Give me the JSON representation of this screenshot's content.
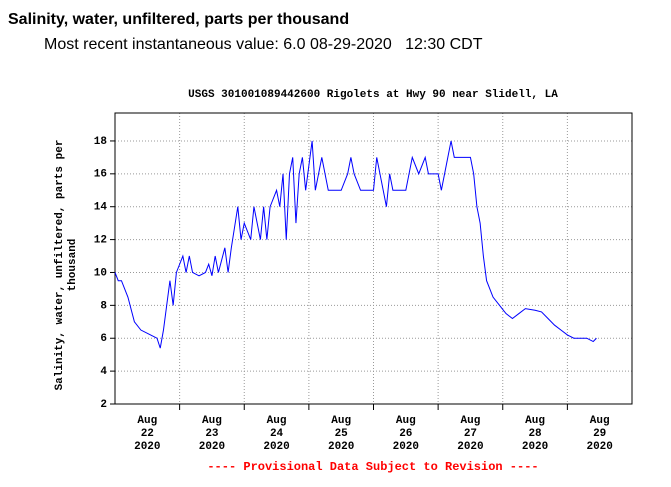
{
  "header": {
    "title": "Salinity, water, unfiltered, parts per thousand",
    "subtitle": "Most recent instantaneous value: 6.0 08-29-2020   12:30 CDT"
  },
  "chart_data": {
    "type": "line",
    "title": "USGS 301001089442600 Rigolets at Hwy 90 near Slidell, LA",
    "ylabel": [
      "Salinity, water, unfiltered, parts per",
      "thousand"
    ],
    "note": "---- Provisional Data Subject to Revision ----",
    "xlim": [
      22,
      30
    ],
    "ylim": [
      2,
      19.7
    ],
    "yticks": [
      2,
      4,
      6,
      8,
      10,
      12,
      14,
      16,
      18
    ],
    "xticks": [
      {
        "value": 22.5,
        "label": [
          "Aug",
          "22",
          "2020"
        ]
      },
      {
        "value": 23.5,
        "label": [
          "Aug",
          "23",
          "2020"
        ]
      },
      {
        "value": 24.5,
        "label": [
          "Aug",
          "24",
          "2020"
        ]
      },
      {
        "value": 25.5,
        "label": [
          "Aug",
          "25",
          "2020"
        ]
      },
      {
        "value": 26.5,
        "label": [
          "Aug",
          "26",
          "2020"
        ]
      },
      {
        "value": 27.5,
        "label": [
          "Aug",
          "27",
          "2020"
        ]
      },
      {
        "value": 28.5,
        "label": [
          "Aug",
          "28",
          "2020"
        ]
      },
      {
        "value": 29.5,
        "label": [
          "Aug",
          "29",
          "2020"
        ]
      }
    ],
    "grid": true,
    "series": [
      {
        "name": "Salinity",
        "color": "#0000ff",
        "x": [
          22,
          22.05,
          22.1,
          22.2,
          22.3,
          22.4,
          22.55,
          22.65,
          22.7,
          22.75,
          22.8,
          22.85,
          22.9,
          22.95,
          23,
          23.05,
          23.1,
          23.15,
          23.2,
          23.3,
          23.4,
          23.45,
          23.5,
          23.55,
          23.6,
          23.7,
          23.75,
          23.8,
          23.9,
          23.95,
          24,
          24.1,
          24.15,
          24.25,
          24.3,
          24.35,
          24.4,
          24.5,
          24.55,
          24.6,
          24.65,
          24.7,
          24.75,
          24.8,
          24.85,
          24.9,
          24.95,
          25.05,
          25.1,
          25.2,
          25.3,
          25.5,
          25.6,
          25.65,
          25.7,
          25.8,
          26,
          26.05,
          26.15,
          26.2,
          26.25,
          26.3,
          26.5,
          26.55,
          26.6,
          26.7,
          26.8,
          26.85,
          27,
          27.05,
          27.15,
          27.2,
          27.25,
          27.5,
          27.55,
          27.6,
          27.65,
          27.7,
          27.75,
          27.85,
          27.95,
          28.05,
          28.15,
          28.25,
          28.35,
          28.5,
          28.6,
          28.7,
          28.8,
          28.9,
          29,
          29.1,
          29.3,
          29.4,
          29.45
        ],
        "values": [
          10,
          9.5,
          9.5,
          8.5,
          7,
          6.5,
          6.2,
          6,
          5.4,
          6.5,
          8,
          9.5,
          8,
          10,
          10.5,
          11,
          10,
          11,
          10,
          9.8,
          10,
          10.5,
          9.8,
          11,
          10,
          11.5,
          10,
          11.5,
          14,
          12,
          13,
          12,
          14,
          12,
          14,
          12,
          14,
          15,
          14,
          16,
          12,
          16,
          17,
          13,
          16,
          17,
          15,
          18,
          15,
          17,
          15,
          15,
          16,
          17,
          16,
          15,
          15,
          17,
          15,
          14,
          16,
          15,
          15,
          16,
          17,
          16,
          17,
          16,
          16,
          15,
          17,
          18,
          17,
          17,
          16,
          14,
          13,
          11,
          9.5,
          8.5,
          8,
          7.5,
          7.2,
          7.5,
          7.8,
          7.7,
          7.6,
          7.2,
          6.8,
          6.5,
          6.2,
          6,
          6,
          5.8,
          6
        ]
      }
    ]
  }
}
